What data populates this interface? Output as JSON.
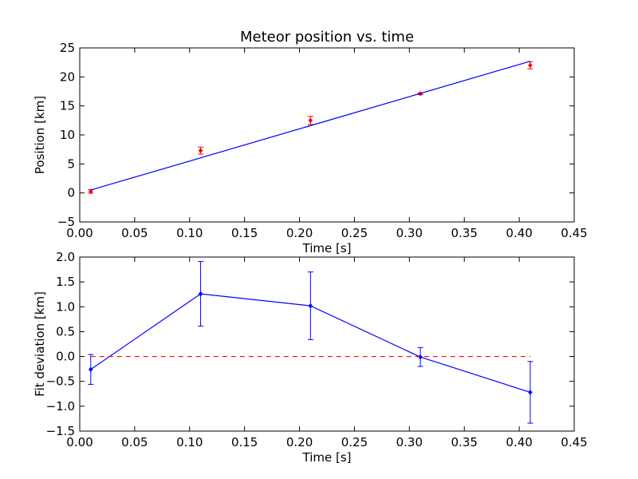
{
  "chart_data": [
    {
      "type": "scatter",
      "title": "Meteor position vs. time",
      "xlabel": "Time [s]",
      "ylabel": "Position [km]",
      "xlim": [
        0.0,
        0.45
      ],
      "ylim": [
        -5,
        25
      ],
      "grid": false,
      "x_ticks": [
        "0.00",
        "0.05",
        "0.10",
        "0.15",
        "0.20",
        "0.25",
        "0.30",
        "0.35",
        "0.40",
        "0.45"
      ],
      "y_ticks": [
        "−5",
        "0",
        "5",
        "10",
        "15",
        "20",
        "25"
      ],
      "series": [
        {
          "kind": "errorbar-points",
          "color": "#ff0000",
          "x": [
            0.01,
            0.11,
            0.21,
            0.31,
            0.41
          ],
          "y": [
            0.25,
            7.3,
            12.5,
            17.1,
            22.0
          ],
          "yerr": [
            0.3,
            0.6,
            0.7,
            0.15,
            0.6
          ]
        },
        {
          "kind": "fit-line",
          "color": "#0000ff",
          "x": [
            0.01,
            0.41
          ],
          "y": [
            0.5,
            22.7
          ]
        }
      ]
    },
    {
      "type": "line",
      "xlabel": "Time [s]",
      "ylabel": "Fit deviation [km]",
      "xlim": [
        0.0,
        0.45
      ],
      "ylim": [
        -1.5,
        2.0
      ],
      "grid": false,
      "x_ticks": [
        "0.00",
        "0.05",
        "0.10",
        "0.15",
        "0.20",
        "0.25",
        "0.30",
        "0.35",
        "0.40",
        "0.45"
      ],
      "y_ticks": [
        "−1.5",
        "−1.0",
        "−0.5",
        "0.0",
        "0.5",
        "1.0",
        "1.5",
        "2.0"
      ],
      "series": [
        {
          "kind": "errorbar-line",
          "color": "#0000ff",
          "x": [
            0.01,
            0.11,
            0.21,
            0.31,
            0.41
          ],
          "y": [
            -0.26,
            1.26,
            1.02,
            -0.01,
            -0.72
          ],
          "yerr": [
            0.3,
            0.65,
            0.68,
            0.19,
            0.62
          ]
        },
        {
          "kind": "zero-line",
          "color": "#ff0000",
          "style": "dashed",
          "x": [
            0.01,
            0.41
          ],
          "y": [
            0.0,
            0.0
          ]
        }
      ]
    }
  ]
}
